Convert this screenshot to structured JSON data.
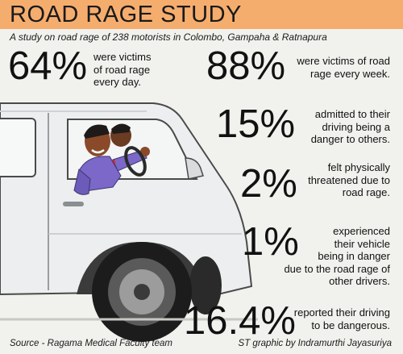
{
  "header": {
    "title": "ROAD RAGE STUDY",
    "subtitle": "A study on road rage of 238 motorists in Colombo, Gampaha & Ratnapura"
  },
  "stats": [
    {
      "value": "64%",
      "desc_lines": [
        "were victims",
        "of road rage",
        "every day."
      ]
    },
    {
      "value": "88%",
      "desc_lines": [
        "were victims of road",
        "rage every week."
      ]
    },
    {
      "value": "15%",
      "desc_lines": [
        "admitted to their",
        "driving being a",
        "danger to others."
      ]
    },
    {
      "value": "2%",
      "desc_lines": [
        "felt physically",
        "threatened due to",
        "road rage."
      ]
    },
    {
      "value": "1%",
      "desc_lines": [
        "experienced",
        "their vehicle",
        "being in danger",
        "due to the road rage of",
        "other drivers."
      ]
    },
    {
      "value": "16.4%",
      "desc_lines": [
        "reported their driving",
        "to be dangerous."
      ]
    }
  ],
  "footer": {
    "source": "Source - Ragama Medical Faculty team",
    "credit": "ST graphic by Indramurthi Jayasuriya"
  },
  "colors": {
    "title_bar": "#f5ad6e",
    "background": "#f1f1ee",
    "van_body": "#eceeef",
    "tire": "#1c1c1c",
    "shirt": "#7b68c8"
  },
  "icons": [
    "van-illustration",
    "driver-illustration"
  ]
}
